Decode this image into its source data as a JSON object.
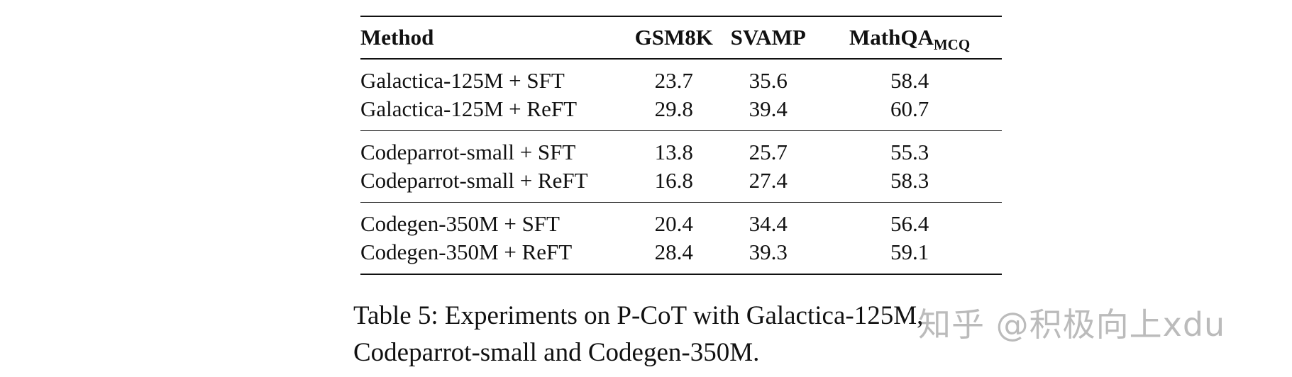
{
  "table": {
    "headers": {
      "method": "Method",
      "gsm8k": "GSM8K",
      "svamp": "SVAMP",
      "mathqa": "MathQA",
      "mathqa_sub": "MCQ"
    },
    "groups": [
      {
        "rows": [
          {
            "method": "Galactica-125M + SFT",
            "gsm8k": "23.7",
            "svamp": "35.6",
            "mathqa": "58.4"
          },
          {
            "method": "Galactica-125M + ReFT",
            "gsm8k": "29.8",
            "svamp": "39.4",
            "mathqa": "60.7"
          }
        ]
      },
      {
        "rows": [
          {
            "method": "Codeparrot-small + SFT",
            "gsm8k": "13.8",
            "svamp": "25.7",
            "mathqa": "55.3"
          },
          {
            "method": "Codeparrot-small + ReFT",
            "gsm8k": "16.8",
            "svamp": "27.4",
            "mathqa": "58.3"
          }
        ]
      },
      {
        "rows": [
          {
            "method": "Codegen-350M + SFT",
            "gsm8k": "20.4",
            "svamp": "34.4",
            "mathqa": "56.4"
          },
          {
            "method": "Codegen-350M + ReFT",
            "gsm8k": "28.4",
            "svamp": "39.3",
            "mathqa": "59.1"
          }
        ]
      }
    ]
  },
  "caption": {
    "line1": "Table 5: Experiments on P-CoT with Galactica-125M,",
    "line2": "Codeparrot-small and Codegen-350M."
  },
  "watermark": {
    "text": "知乎 @积极向上xdu"
  }
}
